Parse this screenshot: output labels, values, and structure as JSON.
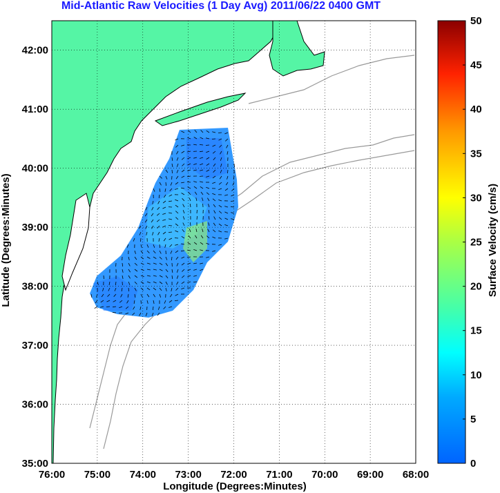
{
  "title": "Mid-Atlantic Raw Velocities (1 Day Avg) 2011/06/22 0400 GMT",
  "chart_data": {
    "type": "heatmap",
    "title": "Mid-Atlantic Raw Velocities (1 Day Avg) 2011/06/22 0400 GMT",
    "xlabel": "Longitude (Degrees:Minutes)",
    "ylabel": "Latitude (Degrees:Minutes)",
    "x_ticks": [
      "76:00",
      "75:00",
      "74:00",
      "73:00",
      "72:00",
      "71:00",
      "70:00",
      "69:00",
      "68:00"
    ],
    "y_ticks": [
      "42:00",
      "41:00",
      "40:00",
      "39:00",
      "38:00",
      "37:00",
      "36:00",
      "35:00"
    ],
    "xlim": [
      -76,
      -68
    ],
    "ylim": [
      35,
      42.5
    ],
    "grid": true,
    "colorbar": {
      "label": "Surface Velocity (cm/s)",
      "range": [
        0,
        50
      ],
      "ticks": [
        "0",
        "5",
        "10",
        "15",
        "20",
        "25",
        "30",
        "35",
        "40",
        "45",
        "50"
      ]
    }
  },
  "colors": {
    "title": "#1a1aff",
    "land": "#55f5a5",
    "coast": "#000000",
    "bathymetry": "#999999",
    "grid": "#000000"
  }
}
